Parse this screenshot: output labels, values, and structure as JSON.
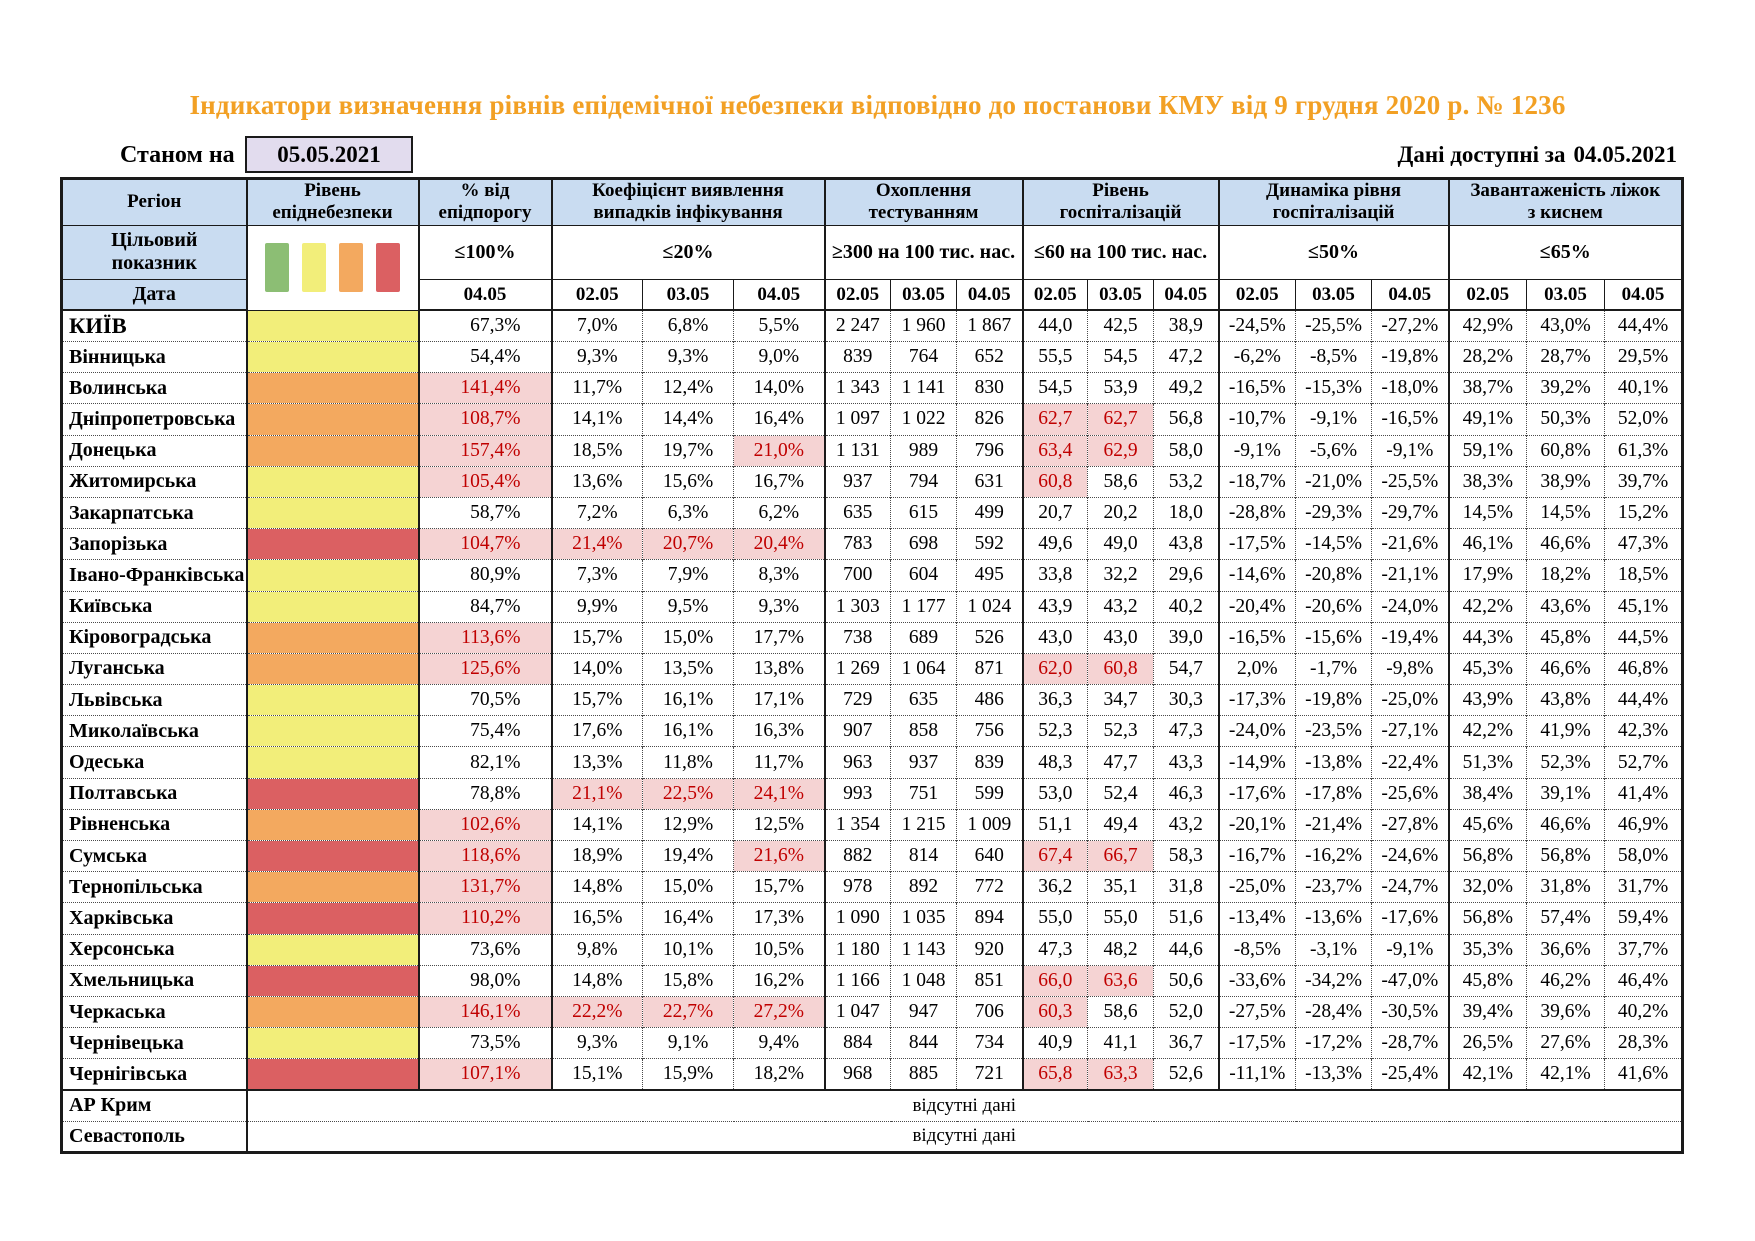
{
  "title": "Індикатори визначення рівнів епідемічної небезпеки відповідно до постанови КМУ від 9 грудня 2020 р. № 1236",
  "as_of": {
    "label": "Станом на",
    "date": "05.05.2021"
  },
  "available": {
    "label": "Дані доступні за",
    "date": "04.05.2021"
  },
  "header": {
    "region": "Регіон",
    "target_label": "Цільовий\nпоказник",
    "date_label": "Дата",
    "groups": [
      {
        "label": "Рівень\nепіднебезпеки",
        "target": "",
        "dates": []
      },
      {
        "label": "% від\nепідпорогу",
        "target": "≤100%",
        "dates": [
          "04.05"
        ]
      },
      {
        "label": "Коефіцієнт виявлення\nвипадків інфікування",
        "target": "≤20%",
        "dates": [
          "02.05",
          "03.05",
          "04.05"
        ]
      },
      {
        "label": "Охоплення\nтестуванням",
        "target": "≥300 на 100 тис. нас.",
        "dates": [
          "02.05",
          "03.05",
          "04.05"
        ]
      },
      {
        "label": "Рівень\nгоспіталізацій",
        "target": "≤60 на 100 тис. нас.",
        "dates": [
          "02.05",
          "03.05",
          "04.05"
        ]
      },
      {
        "label": "Динаміка рівня\nгоспіталізацій",
        "target": "≤50%",
        "dates": [
          "02.05",
          "03.05",
          "04.05"
        ]
      },
      {
        "label": "Завантаженість ліжок\nз киснем",
        "target": "≤65%",
        "dates": [
          "02.05",
          "03.05",
          "04.05"
        ]
      }
    ]
  },
  "legend": {
    "names": [
      "green",
      "yellow",
      "orange",
      "red"
    ],
    "colors": [
      "#8CBE74",
      "#F2EE7A",
      "#F3A95F",
      "#DB6062"
    ]
  },
  "level_colors": {
    "green": "#8CBE74",
    "yellow": "#F2EE7A",
    "orange": "#F3A95F",
    "red": "#DB6062"
  },
  "alert_style": {
    "background": "#F5D3D3",
    "text": "#C00000"
  },
  "rows": [
    {
      "region": "КИЇВ",
      "level": "yellow",
      "epi": "67,3%",
      "epi_a": 0,
      "detect": [
        "7,0%",
        "6,8%",
        "5,5%"
      ],
      "detect_a": [
        0,
        0,
        0
      ],
      "test": [
        "2 247",
        "1 960",
        "1 867"
      ],
      "hosp": [
        "44,0",
        "42,5",
        "38,9"
      ],
      "hosp_a": [
        0,
        0,
        0
      ],
      "dyn": [
        "-24,5%",
        "-25,5%",
        "-27,2%"
      ],
      "beds": [
        "42,9%",
        "43,0%",
        "44,4%"
      ]
    },
    {
      "region": "Вінницька",
      "level": "yellow",
      "epi": "54,4%",
      "epi_a": 0,
      "detect": [
        "9,3%",
        "9,3%",
        "9,0%"
      ],
      "detect_a": [
        0,
        0,
        0
      ],
      "test": [
        "839",
        "764",
        "652"
      ],
      "hosp": [
        "55,5",
        "54,5",
        "47,2"
      ],
      "hosp_a": [
        0,
        0,
        0
      ],
      "dyn": [
        "-6,2%",
        "-8,5%",
        "-19,8%"
      ],
      "beds": [
        "28,2%",
        "28,7%",
        "29,5%"
      ]
    },
    {
      "region": "Волинська",
      "level": "orange",
      "epi": "141,4%",
      "epi_a": 1,
      "detect": [
        "11,7%",
        "12,4%",
        "14,0%"
      ],
      "detect_a": [
        0,
        0,
        0
      ],
      "test": [
        "1 343",
        "1 141",
        "830"
      ],
      "hosp": [
        "54,5",
        "53,9",
        "49,2"
      ],
      "hosp_a": [
        0,
        0,
        0
      ],
      "dyn": [
        "-16,5%",
        "-15,3%",
        "-18,0%"
      ],
      "beds": [
        "38,7%",
        "39,2%",
        "40,1%"
      ]
    },
    {
      "region": "Дніпропетровська",
      "level": "orange",
      "epi": "108,7%",
      "epi_a": 1,
      "detect": [
        "14,1%",
        "14,4%",
        "16,4%"
      ],
      "detect_a": [
        0,
        0,
        0
      ],
      "test": [
        "1 097",
        "1 022",
        "826"
      ],
      "hosp": [
        "62,7",
        "62,7",
        "56,8"
      ],
      "hosp_a": [
        1,
        1,
        0
      ],
      "dyn": [
        "-10,7%",
        "-9,1%",
        "-16,5%"
      ],
      "beds": [
        "49,1%",
        "50,3%",
        "52,0%"
      ]
    },
    {
      "region": "Донецька",
      "level": "orange",
      "epi": "157,4%",
      "epi_a": 1,
      "detect": [
        "18,5%",
        "19,7%",
        "21,0%"
      ],
      "detect_a": [
        0,
        0,
        1
      ],
      "test": [
        "1 131",
        "989",
        "796"
      ],
      "hosp": [
        "63,4",
        "62,9",
        "58,0"
      ],
      "hosp_a": [
        1,
        1,
        0
      ],
      "dyn": [
        "-9,1%",
        "-5,6%",
        "-9,1%"
      ],
      "beds": [
        "59,1%",
        "60,8%",
        "61,3%"
      ]
    },
    {
      "region": "Житомирська",
      "level": "yellow",
      "epi": "105,4%",
      "epi_a": 1,
      "detect": [
        "13,6%",
        "15,6%",
        "16,7%"
      ],
      "detect_a": [
        0,
        0,
        0
      ],
      "test": [
        "937",
        "794",
        "631"
      ],
      "hosp": [
        "60,8",
        "58,6",
        "53,2"
      ],
      "hosp_a": [
        1,
        0,
        0
      ],
      "dyn": [
        "-18,7%",
        "-21,0%",
        "-25,5%"
      ],
      "beds": [
        "38,3%",
        "38,9%",
        "39,7%"
      ]
    },
    {
      "region": "Закарпатська",
      "level": "yellow",
      "epi": "58,7%",
      "epi_a": 0,
      "detect": [
        "7,2%",
        "6,3%",
        "6,2%"
      ],
      "detect_a": [
        0,
        0,
        0
      ],
      "test": [
        "635",
        "615",
        "499"
      ],
      "hosp": [
        "20,7",
        "20,2",
        "18,0"
      ],
      "hosp_a": [
        0,
        0,
        0
      ],
      "dyn": [
        "-28,8%",
        "-29,3%",
        "-29,7%"
      ],
      "beds": [
        "14,5%",
        "14,5%",
        "15,2%"
      ]
    },
    {
      "region": "Запорізька",
      "level": "red",
      "epi": "104,7%",
      "epi_a": 1,
      "detect": [
        "21,4%",
        "20,7%",
        "20,4%"
      ],
      "detect_a": [
        1,
        1,
        1
      ],
      "test": [
        "783",
        "698",
        "592"
      ],
      "hosp": [
        "49,6",
        "49,0",
        "43,8"
      ],
      "hosp_a": [
        0,
        0,
        0
      ],
      "dyn": [
        "-17,5%",
        "-14,5%",
        "-21,6%"
      ],
      "beds": [
        "46,1%",
        "46,6%",
        "47,3%"
      ]
    },
    {
      "region": "Івано-Франківська",
      "level": "yellow",
      "epi": "80,9%",
      "epi_a": 0,
      "detect": [
        "7,3%",
        "7,9%",
        "8,3%"
      ],
      "detect_a": [
        0,
        0,
        0
      ],
      "test": [
        "700",
        "604",
        "495"
      ],
      "hosp": [
        "33,8",
        "32,2",
        "29,6"
      ],
      "hosp_a": [
        0,
        0,
        0
      ],
      "dyn": [
        "-14,6%",
        "-20,8%",
        "-21,1%"
      ],
      "beds": [
        "17,9%",
        "18,2%",
        "18,5%"
      ]
    },
    {
      "region": "Київська",
      "level": "yellow",
      "epi": "84,7%",
      "epi_a": 0,
      "detect": [
        "9,9%",
        "9,5%",
        "9,3%"
      ],
      "detect_a": [
        0,
        0,
        0
      ],
      "test": [
        "1 303",
        "1 177",
        "1 024"
      ],
      "hosp": [
        "43,9",
        "43,2",
        "40,2"
      ],
      "hosp_a": [
        0,
        0,
        0
      ],
      "dyn": [
        "-20,4%",
        "-20,6%",
        "-24,0%"
      ],
      "beds": [
        "42,2%",
        "43,6%",
        "45,1%"
      ]
    },
    {
      "region": "Кіровоградська",
      "level": "orange",
      "epi": "113,6%",
      "epi_a": 1,
      "detect": [
        "15,7%",
        "15,0%",
        "17,7%"
      ],
      "detect_a": [
        0,
        0,
        0
      ],
      "test": [
        "738",
        "689",
        "526"
      ],
      "hosp": [
        "43,0",
        "43,0",
        "39,0"
      ],
      "hosp_a": [
        0,
        0,
        0
      ],
      "dyn": [
        "-16,5%",
        "-15,6%",
        "-19,4%"
      ],
      "beds": [
        "44,3%",
        "45,8%",
        "44,5%"
      ]
    },
    {
      "region": "Луганська",
      "level": "orange",
      "epi": "125,6%",
      "epi_a": 1,
      "detect": [
        "14,0%",
        "13,5%",
        "13,8%"
      ],
      "detect_a": [
        0,
        0,
        0
      ],
      "test": [
        "1 269",
        "1 064",
        "871"
      ],
      "hosp": [
        "62,0",
        "60,8",
        "54,7"
      ],
      "hosp_a": [
        1,
        1,
        0
      ],
      "dyn": [
        "2,0%",
        "-1,7%",
        "-9,8%"
      ],
      "beds": [
        "45,3%",
        "46,6%",
        "46,8%"
      ]
    },
    {
      "region": "Львівська",
      "level": "yellow",
      "epi": "70,5%",
      "epi_a": 0,
      "detect": [
        "15,7%",
        "16,1%",
        "17,1%"
      ],
      "detect_a": [
        0,
        0,
        0
      ],
      "test": [
        "729",
        "635",
        "486"
      ],
      "hosp": [
        "36,3",
        "34,7",
        "30,3"
      ],
      "hosp_a": [
        0,
        0,
        0
      ],
      "dyn": [
        "-17,3%",
        "-19,8%",
        "-25,0%"
      ],
      "beds": [
        "43,9%",
        "43,8%",
        "44,4%"
      ]
    },
    {
      "region": "Миколаївська",
      "level": "yellow",
      "epi": "75,4%",
      "epi_a": 0,
      "detect": [
        "17,6%",
        "16,1%",
        "16,3%"
      ],
      "detect_a": [
        0,
        0,
        0
      ],
      "test": [
        "907",
        "858",
        "756"
      ],
      "hosp": [
        "52,3",
        "52,3",
        "47,3"
      ],
      "hosp_a": [
        0,
        0,
        0
      ],
      "dyn": [
        "-24,0%",
        "-23,5%",
        "-27,1%"
      ],
      "beds": [
        "42,2%",
        "41,9%",
        "42,3%"
      ]
    },
    {
      "region": "Одеська",
      "level": "yellow",
      "epi": "82,1%",
      "epi_a": 0,
      "detect": [
        "13,3%",
        "11,8%",
        "11,7%"
      ],
      "detect_a": [
        0,
        0,
        0
      ],
      "test": [
        "963",
        "937",
        "839"
      ],
      "hosp": [
        "48,3",
        "47,7",
        "43,3"
      ],
      "hosp_a": [
        0,
        0,
        0
      ],
      "dyn": [
        "-14,9%",
        "-13,8%",
        "-22,4%"
      ],
      "beds": [
        "51,3%",
        "52,3%",
        "52,7%"
      ]
    },
    {
      "region": "Полтавська",
      "level": "red",
      "epi": "78,8%",
      "epi_a": 0,
      "detect": [
        "21,1%",
        "22,5%",
        "24,1%"
      ],
      "detect_a": [
        1,
        1,
        1
      ],
      "test": [
        "993",
        "751",
        "599"
      ],
      "hosp": [
        "53,0",
        "52,4",
        "46,3"
      ],
      "hosp_a": [
        0,
        0,
        0
      ],
      "dyn": [
        "-17,6%",
        "-17,8%",
        "-25,6%"
      ],
      "beds": [
        "38,4%",
        "39,1%",
        "41,4%"
      ]
    },
    {
      "region": "Рівненська",
      "level": "orange",
      "epi": "102,6%",
      "epi_a": 1,
      "detect": [
        "14,1%",
        "12,9%",
        "12,5%"
      ],
      "detect_a": [
        0,
        0,
        0
      ],
      "test": [
        "1 354",
        "1 215",
        "1 009"
      ],
      "hosp": [
        "51,1",
        "49,4",
        "43,2"
      ],
      "hosp_a": [
        0,
        0,
        0
      ],
      "dyn": [
        "-20,1%",
        "-21,4%",
        "-27,8%"
      ],
      "beds": [
        "45,6%",
        "46,6%",
        "46,9%"
      ]
    },
    {
      "region": "Сумська",
      "level": "red",
      "epi": "118,6%",
      "epi_a": 1,
      "detect": [
        "18,9%",
        "19,4%",
        "21,6%"
      ],
      "detect_a": [
        0,
        0,
        1
      ],
      "test": [
        "882",
        "814",
        "640"
      ],
      "hosp": [
        "67,4",
        "66,7",
        "58,3"
      ],
      "hosp_a": [
        1,
        1,
        0
      ],
      "dyn": [
        "-16,7%",
        "-16,2%",
        "-24,6%"
      ],
      "beds": [
        "56,8%",
        "56,8%",
        "58,0%"
      ]
    },
    {
      "region": "Тернопільська",
      "level": "orange",
      "epi": "131,7%",
      "epi_a": 1,
      "detect": [
        "14,8%",
        "15,0%",
        "15,7%"
      ],
      "detect_a": [
        0,
        0,
        0
      ],
      "test": [
        "978",
        "892",
        "772"
      ],
      "hosp": [
        "36,2",
        "35,1",
        "31,8"
      ],
      "hosp_a": [
        0,
        0,
        0
      ],
      "dyn": [
        "-25,0%",
        "-23,7%",
        "-24,7%"
      ],
      "beds": [
        "32,0%",
        "31,8%",
        "31,7%"
      ]
    },
    {
      "region": "Харківська",
      "level": "red",
      "epi": "110,2%",
      "epi_a": 1,
      "detect": [
        "16,5%",
        "16,4%",
        "17,3%"
      ],
      "detect_a": [
        0,
        0,
        0
      ],
      "test": [
        "1 090",
        "1 035",
        "894"
      ],
      "hosp": [
        "55,0",
        "55,0",
        "51,6"
      ],
      "hosp_a": [
        0,
        0,
        0
      ],
      "dyn": [
        "-13,4%",
        "-13,6%",
        "-17,6%"
      ],
      "beds": [
        "56,8%",
        "57,4%",
        "59,4%"
      ]
    },
    {
      "region": "Херсонська",
      "level": "yellow",
      "epi": "73,6%",
      "epi_a": 0,
      "detect": [
        "9,8%",
        "10,1%",
        "10,5%"
      ],
      "detect_a": [
        0,
        0,
        0
      ],
      "test": [
        "1 180",
        "1 143",
        "920"
      ],
      "hosp": [
        "47,3",
        "48,2",
        "44,6"
      ],
      "hosp_a": [
        0,
        0,
        0
      ],
      "dyn": [
        "-8,5%",
        "-3,1%",
        "-9,1%"
      ],
      "beds": [
        "35,3%",
        "36,6%",
        "37,7%"
      ]
    },
    {
      "region": "Хмельницька",
      "level": "red",
      "epi": "98,0%",
      "epi_a": 0,
      "detect": [
        "14,8%",
        "15,8%",
        "16,2%"
      ],
      "detect_a": [
        0,
        0,
        0
      ],
      "test": [
        "1 166",
        "1 048",
        "851"
      ],
      "hosp": [
        "66,0",
        "63,6",
        "50,6"
      ],
      "hosp_a": [
        1,
        1,
        0
      ],
      "dyn": [
        "-33,6%",
        "-34,2%",
        "-47,0%"
      ],
      "beds": [
        "45,8%",
        "46,2%",
        "46,4%"
      ]
    },
    {
      "region": "Черкаська",
      "level": "orange",
      "epi": "146,1%",
      "epi_a": 1,
      "detect": [
        "22,2%",
        "22,7%",
        "27,2%"
      ],
      "detect_a": [
        1,
        1,
        1
      ],
      "test": [
        "1 047",
        "947",
        "706"
      ],
      "hosp": [
        "60,3",
        "58,6",
        "52,0"
      ],
      "hosp_a": [
        1,
        0,
        0
      ],
      "dyn": [
        "-27,5%",
        "-28,4%",
        "-30,5%"
      ],
      "beds": [
        "39,4%",
        "39,6%",
        "40,2%"
      ]
    },
    {
      "region": "Чернівецька",
      "level": "yellow",
      "epi": "73,5%",
      "epi_a": 0,
      "detect": [
        "9,3%",
        "9,1%",
        "9,4%"
      ],
      "detect_a": [
        0,
        0,
        0
      ],
      "test": [
        "884",
        "844",
        "734"
      ],
      "hosp": [
        "40,9",
        "41,1",
        "36,7"
      ],
      "hosp_a": [
        0,
        0,
        0
      ],
      "dyn": [
        "-17,5%",
        "-17,2%",
        "-28,7%"
      ],
      "beds": [
        "26,5%",
        "27,6%",
        "28,3%"
      ]
    },
    {
      "region": "Чернігівська",
      "level": "red",
      "epi": "107,1%",
      "epi_a": 1,
      "detect": [
        "15,1%",
        "15,9%",
        "18,2%"
      ],
      "detect_a": [
        0,
        0,
        0
      ],
      "test": [
        "968",
        "885",
        "721"
      ],
      "hosp": [
        "65,8",
        "63,3",
        "52,6"
      ],
      "hosp_a": [
        1,
        1,
        0
      ],
      "dyn": [
        "-11,1%",
        "-13,3%",
        "-25,4%"
      ],
      "beds": [
        "42,1%",
        "42,1%",
        "41,6%"
      ]
    }
  ],
  "no_data_rows": [
    {
      "region": "АР Крим",
      "text": "відсутні дані"
    },
    {
      "region": "Севастополь",
      "text": "відсутні дані"
    }
  ]
}
